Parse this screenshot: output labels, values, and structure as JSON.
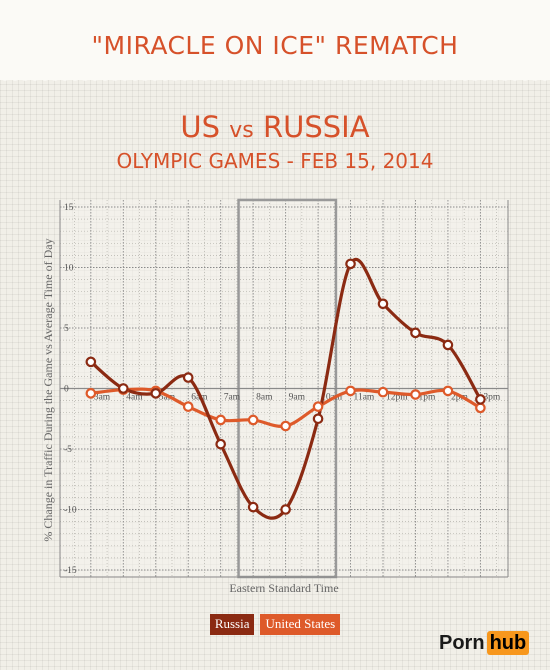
{
  "header": {
    "banner_title": "\"MIRACLE ON ICE\" REMATCH",
    "team_a": "US",
    "vs": "vs",
    "team_b": "RUSSIA",
    "event": "OLYMPIC GAMES - FEB 15, 2014"
  },
  "brand": {
    "part_a": "Porn",
    "part_b": "hub",
    "accent": "#f7971d"
  },
  "colors": {
    "russia": "#8b2a12",
    "united_states": "#de5a2a",
    "title": "#d6512a",
    "highlight_box": "#999999"
  },
  "chart_data": {
    "type": "line",
    "categories": [
      "3am",
      "4am",
      "5am",
      "6am",
      "7am",
      "8am",
      "9am",
      "10am",
      "11am",
      "12pm",
      "1pm",
      "2pm",
      "3pm"
    ],
    "category_labels": [
      "3am",
      "4am",
      "5am",
      "6am",
      "7am",
      "8am",
      "9am",
      "10am",
      "11am",
      "12pm",
      "1pm",
      "2pm",
      "3pm"
    ],
    "x": [
      2,
      3,
      4,
      5,
      6,
      7,
      8,
      9,
      10,
      11,
      12,
      13,
      14
    ],
    "xlim": [
      1.05,
      14.85
    ],
    "xlabel": "Eastern Standard Time",
    "ylabel": "% Change in Traffic During the Game vs Average Time of Day",
    "ylim": [
      -15,
      15
    ],
    "yticks": [
      15,
      10,
      5,
      0,
      -5,
      -10,
      -15
    ],
    "ytick_labels": [
      "15",
      "10",
      "5",
      "0",
      "-5",
      "-10",
      "-15"
    ],
    "grid": true,
    "highlight": {
      "from": 6.55,
      "to": 9.55
    },
    "series": [
      {
        "name": "Russia",
        "values": [
          2.2,
          0.0,
          -0.4,
          0.9,
          -4.6,
          -9.8,
          -10.0,
          -2.5,
          10.3,
          7.0,
          4.6,
          3.6,
          -0.9
        ],
        "color": "#8b2a12"
      },
      {
        "name": "United States",
        "values": [
          -0.4,
          -0.1,
          -0.2,
          -1.5,
          -2.6,
          -2.6,
          -3.1,
          -1.5,
          -0.2,
          -0.3,
          -0.5,
          -0.2,
          -1.6
        ],
        "color": "#de5a2a"
      }
    ],
    "legend": "bottom-center"
  }
}
